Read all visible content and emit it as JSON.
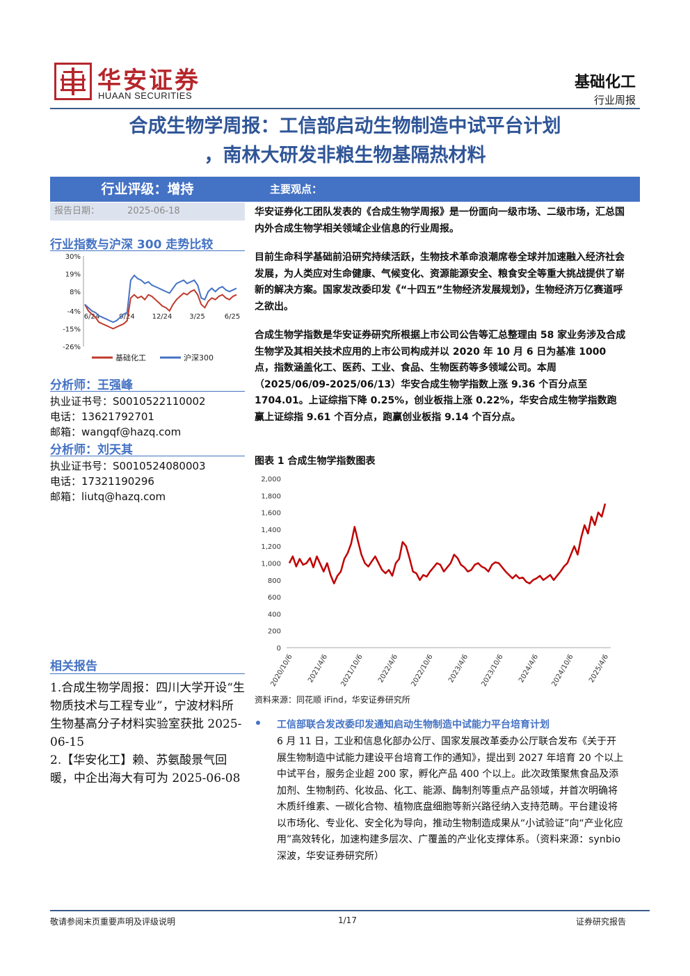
{
  "header": {
    "brand_cn": "华安证券",
    "brand_en": "HUAAN SECURITIES",
    "industry": "基础化工",
    "report_type": "行业周报"
  },
  "title": {
    "line1": "合成生物学周报：工信部启动生物制造中试平台计划",
    "line2": "，南林大研发非粮生物基隔热材料"
  },
  "left": {
    "rating": "行业评级：增持",
    "report_date_label": "报告日期：",
    "report_date": "2025-06-18",
    "chart_section_title": "行业指数与沪深 300 走势比较",
    "analysts": [
      {
        "heading": "分析师：王强峰",
        "cert": "执业证书号：S0010522110002",
        "phone": "电话：13621792701",
        "email": "邮箱：wangqf@hazq.com"
      },
      {
        "heading": "分析师：刘天其",
        "cert": "执业证书号：S0010524080003",
        "phone": "电话：17321190296",
        "email": "邮箱：liutq@hazq.com"
      }
    ],
    "related_title": "相关报告",
    "related_1": "1.合成生物学周报：四川大学开设“生物质技术与工程专业”，宁波材料所生物基高分子材料实验室获批 2025-06-15",
    "related_2": "2.【华安化工】赖、苏氨酸景气回暖，中企出海大有可为 2025-06-08"
  },
  "main": {
    "header": "主要观点：",
    "p1": "华安证券化工团队发表的《合成生物学周报》是一份面向一级市场、二级市场，汇总国内外合成生物学相关领域企业信息的行业周报。",
    "p2": "目前生命科学基础前沿研究持续活跃，生物技术革命浪潮席卷全球并加速融入经济社会发展，为人类应对生命健康、气候变化、资源能源安全、粮食安全等重大挑战提供了崭新的解决方案。国家发改委印发《“十四五”生物经济发展规划》，生物经济万亿赛道呼之欲出。",
    "p3": "合成生物学指数是华安证券研究所根据上市公司公告等汇总整理由 58 家业务涉及合成生物学及其相关技术应用的上市公司构成并以 2020 年 10 月 6 日为基准 1000 点，指数涵盖化工、医药、工业、食品、生物医药等多领域公司。本周（2025/06/09-2025/06/13）华安合成生物学指数上涨 9.36 个百分点至 1704.01。上证综指下降 0.25%，创业板指上涨 0.22%，华安合成生物学指数跑赢上证综指 9.61 个百分点，跑赢创业板指 9.14 个百分点。",
    "figure_title": "图表 1 合成生物学指数图表",
    "figure_source": "资料来源：同花顺 iFind，华安证券研究所",
    "bullet_title": "工信部联合发改委印发通知启动生物制造中试能力平台培育计划",
    "bullet_body": "6 月 11 日，工业和信息化部办公厅、国家发展改革委办公厅联合发布《关于开展生物制造中试能力建设平台培育工作的通知》，提出到 2027 年培育 20 个以上中试平台，服务企业超 200 家，孵化产品 400 个以上。此次政策聚焦食品及添加剂、生物制药、化妆品、化工、能源、酶制剂等重点产品领域，并首次明确将木质纤维素、一碳化合物、植物底盘细胞等新兴路径纳入支持范畴。平台建设将以市场化、专业化、安全化为导向，推动生物制造成果从“小试验证”向“产业化应用”高效转化，加速构建多层次、广覆盖的产业化支撑体系。（资料来源：synbio 深波，华安证券研究所）"
  },
  "footer": {
    "left": "敬请参阅末页重要声明及评级说明",
    "page": "1/17",
    "right": "证券研究报告"
  },
  "chart_data": [
    {
      "type": "line",
      "title": "行业指数与沪深 300 走势比较",
      "x_ticks": [
        "6/24",
        "9/24",
        "12/24",
        "3/25",
        "6/25"
      ],
      "y_ticks": [
        "30%",
        "19%",
        "8%",
        "-4%",
        "-15%",
        "-26%"
      ],
      "ylim": [
        -26,
        30
      ],
      "legend_position": "bottom",
      "series": [
        {
          "name": "基础化工",
          "color": "#c0392b",
          "values": [
            0,
            -4,
            -6,
            -8,
            -11,
            -12,
            -13,
            -14,
            -15,
            -14,
            -13,
            -12,
            -10,
            4,
            6,
            4,
            5,
            3,
            6,
            5,
            3,
            1,
            -1,
            -2,
            -4,
            0,
            3,
            5,
            7,
            6,
            8,
            9,
            6,
            0,
            -2,
            2,
            4,
            3,
            5,
            6,
            4,
            3,
            5,
            6
          ]
        },
        {
          "name": "沪深300",
          "color": "#4472c4",
          "values": [
            0,
            -2,
            -4,
            -5,
            -7,
            -8,
            -9,
            -10,
            -11,
            -10,
            -8,
            -6,
            -5,
            15,
            18,
            16,
            15,
            13,
            14,
            12,
            11,
            10,
            9,
            8,
            7,
            10,
            13,
            14,
            15,
            13,
            14,
            15,
            12,
            4,
            3,
            8,
            10,
            8,
            10,
            11,
            9,
            8,
            9,
            10
          ]
        }
      ]
    },
    {
      "type": "line",
      "title": "图表 1 合成生物学指数图表",
      "x_ticks": [
        "2020/10/6",
        "2021/4/6",
        "2021/10/6",
        "2022/4/6",
        "2022/10/6",
        "2023/4/6",
        "2023/10/6",
        "2024/4/6",
        "2024/10/6",
        "2025/4/6"
      ],
      "y_ticks": [
        "0",
        "200",
        "400",
        "600",
        "800",
        "1,000",
        "1,200",
        "1,400",
        "1,600",
        "1,800",
        "2,000"
      ],
      "ylim": [
        0,
        2000
      ],
      "series": [
        {
          "name": "",
          "color": "#c00000",
          "values": [
            1000,
            1080,
            960,
            1050,
            980,
            1000,
            1060,
            950,
            1080,
            990,
            900,
            1000,
            860,
            760,
            850,
            900,
            1050,
            1120,
            1230,
            1430,
            1260,
            1100,
            1000,
            960,
            1020,
            1080,
            1000,
            920,
            880,
            920,
            850,
            1000,
            1050,
            1250,
            1200,
            1060,
            900,
            880,
            800,
            860,
            840,
            900,
            950,
            1000,
            980,
            900,
            950,
            1000,
            1100,
            1060,
            980,
            950,
            900,
            920,
            980,
            1000,
            960,
            940,
            900,
            980,
            1010,
            1000,
            950,
            900,
            860,
            820,
            860,
            820,
            830,
            780,
            760,
            800,
            820,
            850,
            800,
            830,
            860,
            800,
            850,
            900,
            960,
            1000,
            1100,
            1200,
            1100,
            1300,
            1450,
            1350,
            1550,
            1450,
            1600,
            1550,
            1704
          ]
        }
      ]
    }
  ]
}
